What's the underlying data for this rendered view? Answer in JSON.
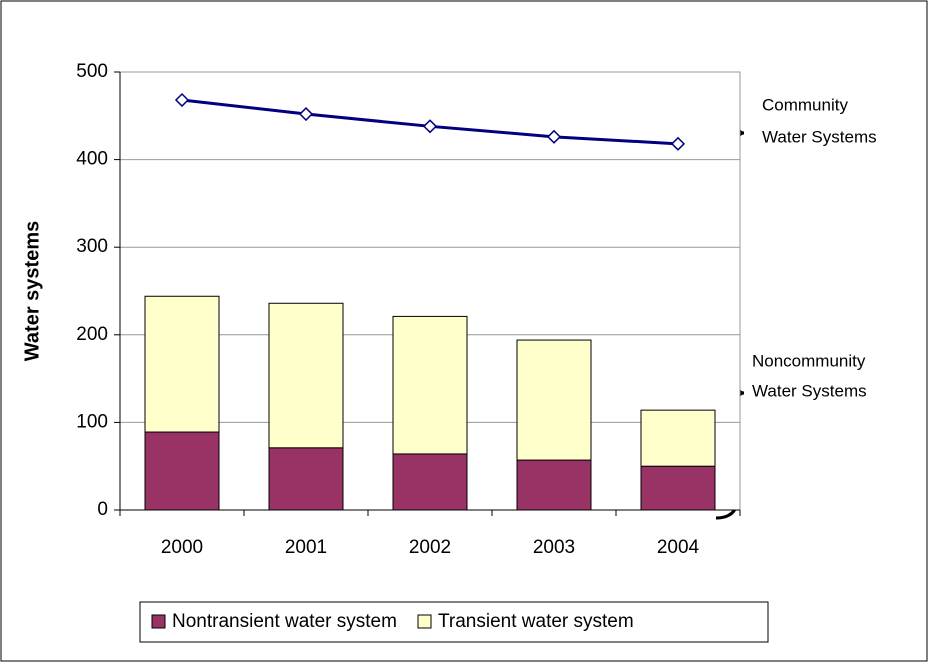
{
  "chart_data": {
    "type": "bar",
    "stacked": true,
    "y_label": "Water systems",
    "categories": [
      "2000",
      "2001",
      "2002",
      "2003",
      "2004"
    ],
    "series": [
      {
        "name": "Nontransient water system",
        "color": "#993366",
        "values": [
          89,
          71,
          64,
          57,
          50
        ]
      },
      {
        "name": "Transient water system",
        "color": "#ffffcc",
        "values": [
          155,
          165,
          157,
          137,
          64
        ]
      }
    ],
    "line": {
      "color": "#000080",
      "values": [
        468,
        452,
        438,
        426,
        418
      ]
    },
    "annotations": [
      {
        "lines": [
          "Community",
          "Water Systems"
        ]
      },
      {
        "lines": [
          "Noncommunity",
          "Water Systems"
        ]
      }
    ],
    "ylim": [
      0,
      500
    ],
    "yticks": [
      0,
      100,
      200,
      300,
      400,
      500
    ],
    "grid": true,
    "legend": "bottom"
  }
}
